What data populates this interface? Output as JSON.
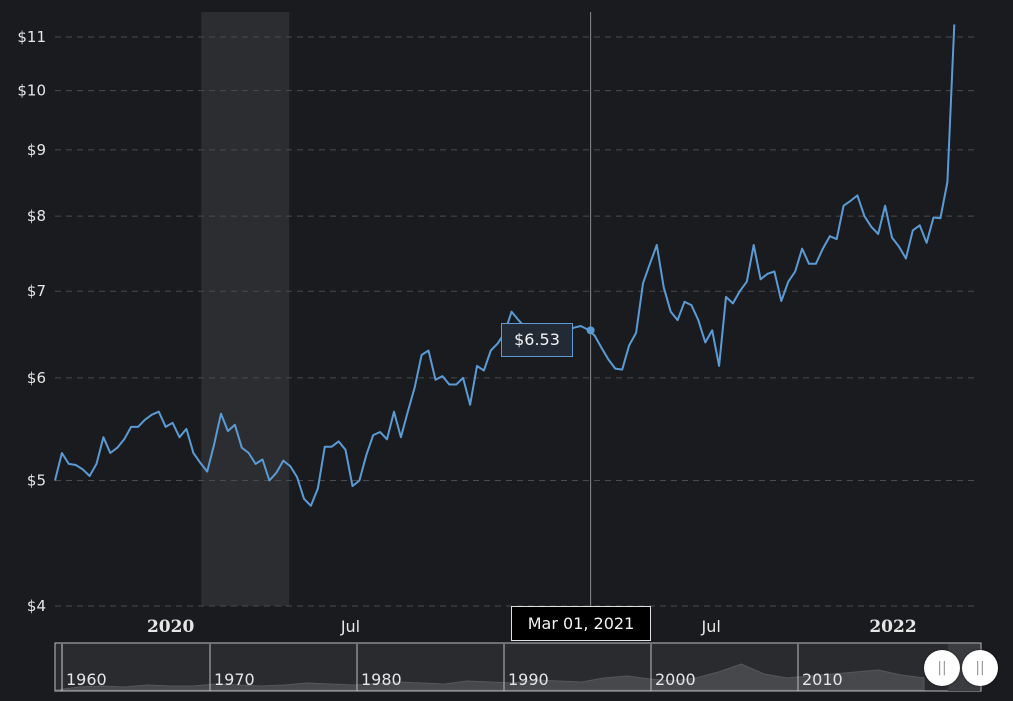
{
  "chart_data": {
    "type": "line",
    "y_scale": "log",
    "ylim": [
      4,
      11.5
    ],
    "yticks": [
      {
        "value": 4,
        "label": "$4"
      },
      {
        "value": 5,
        "label": "$5"
      },
      {
        "value": 6,
        "label": "$6"
      },
      {
        "value": 7,
        "label": "$7"
      },
      {
        "value": 8,
        "label": "$8"
      },
      {
        "value": 9,
        "label": "$9"
      },
      {
        "value": 10,
        "label": "$10"
      },
      {
        "value": 11,
        "label": "$11"
      }
    ],
    "xticks": [
      {
        "date": "2020-01-01",
        "label": "2020",
        "bold": true
      },
      {
        "date": "2020-07-01",
        "label": "Jul",
        "bold": false
      },
      {
        "date": "2021-07-01",
        "label": "Jul",
        "bold": false
      },
      {
        "date": "2022-01-01",
        "label": "2022",
        "bold": true
      }
    ],
    "x_range": [
      "2019-09-06",
      "2022-03-28"
    ],
    "grid": "horizontal dashed",
    "shaded_region": {
      "start": "2020-02-01",
      "end": "2020-04-30"
    },
    "line_color": "#5b9bd5",
    "series": [
      {
        "points": [
          [
            "2019-09-06",
            5.0
          ],
          [
            "2019-09-13",
            5.25
          ],
          [
            "2019-09-20",
            5.15
          ],
          [
            "2019-09-27",
            5.14
          ],
          [
            "2019-10-04",
            5.1
          ],
          [
            "2019-10-11",
            5.04
          ],
          [
            "2019-10-18",
            5.15
          ],
          [
            "2019-10-25",
            5.4
          ],
          [
            "2019-11-01",
            5.25
          ],
          [
            "2019-11-08",
            5.3
          ],
          [
            "2019-11-15",
            5.38
          ],
          [
            "2019-11-22",
            5.5
          ],
          [
            "2019-11-29",
            5.5
          ],
          [
            "2019-12-06",
            5.57
          ],
          [
            "2019-12-13",
            5.62
          ],
          [
            "2019-12-20",
            5.65
          ],
          [
            "2019-12-27",
            5.5
          ],
          [
            "2020-01-03",
            5.54
          ],
          [
            "2020-01-10",
            5.4
          ],
          [
            "2020-01-17",
            5.48
          ],
          [
            "2020-01-24",
            5.25
          ],
          [
            "2020-01-31",
            5.16
          ],
          [
            "2020-02-07",
            5.08
          ],
          [
            "2020-02-14",
            5.33
          ],
          [
            "2020-02-21",
            5.63
          ],
          [
            "2020-02-28",
            5.46
          ],
          [
            "2020-03-06",
            5.52
          ],
          [
            "2020-03-13",
            5.3
          ],
          [
            "2020-03-20",
            5.25
          ],
          [
            "2020-03-27",
            5.15
          ],
          [
            "2020-04-03",
            5.19
          ],
          [
            "2020-04-10",
            5.0
          ],
          [
            "2020-04-17",
            5.07
          ],
          [
            "2020-04-24",
            5.18
          ],
          [
            "2020-05-01",
            5.13
          ],
          [
            "2020-05-08",
            5.03
          ],
          [
            "2020-05-15",
            4.84
          ],
          [
            "2020-05-22",
            4.78
          ],
          [
            "2020-05-29",
            4.93
          ],
          [
            "2020-06-05",
            5.31
          ],
          [
            "2020-06-12",
            5.31
          ],
          [
            "2020-06-19",
            5.36
          ],
          [
            "2020-06-26",
            5.28
          ],
          [
            "2020-07-03",
            4.95
          ],
          [
            "2020-07-10",
            5.0
          ],
          [
            "2020-07-17",
            5.23
          ],
          [
            "2020-07-24",
            5.42
          ],
          [
            "2020-07-31",
            5.45
          ],
          [
            "2020-08-07",
            5.38
          ],
          [
            "2020-08-14",
            5.65
          ],
          [
            "2020-08-21",
            5.4
          ],
          [
            "2020-08-28",
            5.65
          ],
          [
            "2020-09-04",
            5.9
          ],
          [
            "2020-09-11",
            6.25
          ],
          [
            "2020-09-18",
            6.3
          ],
          [
            "2020-09-25",
            5.98
          ],
          [
            "2020-10-02",
            6.02
          ],
          [
            "2020-10-09",
            5.93
          ],
          [
            "2020-10-16",
            5.93
          ],
          [
            "2020-10-23",
            6.0
          ],
          [
            "2020-10-30",
            5.72
          ],
          [
            "2020-11-06",
            6.13
          ],
          [
            "2020-11-13",
            6.08
          ],
          [
            "2020-11-20",
            6.3
          ],
          [
            "2020-11-27",
            6.38
          ],
          [
            "2020-12-04",
            6.5
          ],
          [
            "2020-12-11",
            6.75
          ],
          [
            "2020-12-18",
            6.65
          ],
          [
            "2020-12-25",
            6.56
          ],
          [
            "2021-01-01",
            6.5
          ],
          [
            "2021-01-08",
            6.42
          ],
          [
            "2021-01-15",
            6.33
          ],
          [
            "2021-01-22",
            6.4
          ],
          [
            "2021-01-29",
            6.45
          ],
          [
            "2021-02-05",
            6.52
          ],
          [
            "2021-02-12",
            6.56
          ],
          [
            "2021-02-19",
            6.58
          ],
          [
            "2021-02-26",
            6.54
          ],
          [
            "2021-03-05",
            6.47
          ],
          [
            "2021-03-12",
            6.33
          ],
          [
            "2021-03-19",
            6.2
          ],
          [
            "2021-03-26",
            6.1
          ],
          [
            "2021-04-02",
            6.09
          ],
          [
            "2021-04-09",
            6.36
          ],
          [
            "2021-04-16",
            6.5
          ],
          [
            "2021-04-23",
            7.1
          ],
          [
            "2021-04-30",
            7.35
          ],
          [
            "2021-05-07",
            7.6
          ],
          [
            "2021-05-14",
            7.05
          ],
          [
            "2021-05-21",
            6.75
          ],
          [
            "2021-05-28",
            6.65
          ],
          [
            "2021-06-04",
            6.87
          ],
          [
            "2021-06-11",
            6.83
          ],
          [
            "2021-06-18",
            6.65
          ],
          [
            "2021-06-25",
            6.39
          ],
          [
            "2021-07-02",
            6.53
          ],
          [
            "2021-07-09",
            6.13
          ],
          [
            "2021-07-16",
            6.93
          ],
          [
            "2021-07-23",
            6.85
          ],
          [
            "2021-07-30",
            7.0
          ],
          [
            "2021-08-06",
            7.12
          ],
          [
            "2021-08-13",
            7.6
          ],
          [
            "2021-08-20",
            7.15
          ],
          [
            "2021-08-27",
            7.22
          ],
          [
            "2021-09-03",
            7.25
          ],
          [
            "2021-09-10",
            6.88
          ],
          [
            "2021-09-17",
            7.12
          ],
          [
            "2021-09-24",
            7.25
          ],
          [
            "2021-10-01",
            7.55
          ],
          [
            "2021-10-08",
            7.35
          ],
          [
            "2021-10-15",
            7.35
          ],
          [
            "2021-10-22",
            7.55
          ],
          [
            "2021-10-29",
            7.72
          ],
          [
            "2021-11-05",
            7.68
          ],
          [
            "2021-11-12",
            8.15
          ],
          [
            "2021-11-19",
            8.22
          ],
          [
            "2021-11-26",
            8.3
          ],
          [
            "2021-12-03",
            8.0
          ],
          [
            "2021-12-10",
            7.85
          ],
          [
            "2021-12-17",
            7.75
          ],
          [
            "2021-12-24",
            8.15
          ],
          [
            "2021-12-31",
            7.7
          ],
          [
            "2022-01-07",
            7.58
          ],
          [
            "2022-01-14",
            7.42
          ],
          [
            "2022-01-21",
            7.8
          ],
          [
            "2022-01-28",
            7.87
          ],
          [
            "2022-02-04",
            7.63
          ],
          [
            "2022-02-11",
            7.98
          ],
          [
            "2022-02-18",
            7.97
          ],
          [
            "2022-02-25",
            8.5
          ],
          [
            "2022-03-04",
            11.25
          ]
        ]
      }
    ],
    "hover": {
      "date": "2021-03-01",
      "date_label": "Mar 01, 2021",
      "value": 6.53,
      "value_label": "$6.53"
    }
  },
  "navigator": {
    "labels": [
      "1960",
      "1970",
      "1980",
      "1990",
      "2000",
      "2010"
    ],
    "handle_left_symbol": "||",
    "handle_right_symbol": "||"
  }
}
